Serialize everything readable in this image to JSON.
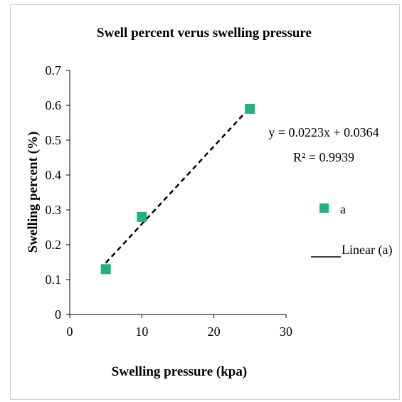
{
  "chart_data": {
    "type": "scatter",
    "title": "Swell percent verus swelling pressure",
    "xlabel": "Swelling pressure (kpa)",
    "ylabel": "Swelling percent  (%)",
    "xlim": [
      0,
      30
    ],
    "ylim": [
      0,
      0.7
    ],
    "xticks": [
      "0",
      "10",
      "20",
      "30"
    ],
    "yticks": [
      "0",
      "0.1",
      "0.2",
      "0.3",
      "0.4",
      "0.5",
      "0.6",
      "0.7"
    ],
    "series": [
      {
        "name": "a",
        "color": "#1fb37a",
        "marker": "square",
        "points": [
          {
            "x": 5,
            "y": 0.13
          },
          {
            "x": 10,
            "y": 0.28
          },
          {
            "x": 25,
            "y": 0.59
          }
        ]
      }
    ],
    "trendline": {
      "name": "Linear (a)",
      "slope": 0.0223,
      "intercept": 0.0364,
      "x_range": [
        5,
        25
      ],
      "style": "dashed",
      "color": "#000000",
      "equation": "y = 0.0223x + 0.0364",
      "r_squared": "R² = 0.9939"
    },
    "grid": false,
    "legend": {
      "position": "right",
      "entries": [
        {
          "label": "a",
          "type": "marker"
        },
        {
          "label": "Linear (a)",
          "type": "line"
        }
      ]
    }
  }
}
